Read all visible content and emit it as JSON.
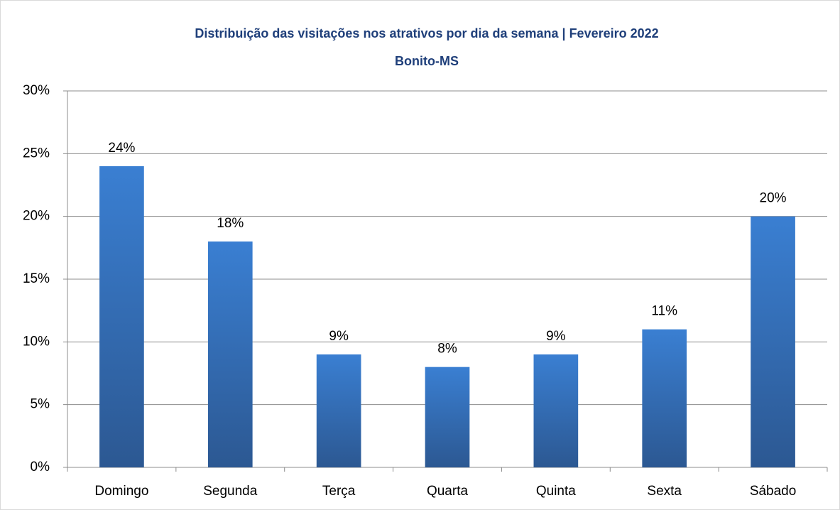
{
  "chart_data": {
    "type": "bar",
    "title": "Distribuição das visitações nos atrativos por dia da semana | Fevereiro 2022",
    "subtitle": "Bonito-MS",
    "categories": [
      "Domingo",
      "Segunda",
      "Terça",
      "Quarta",
      "Quinta",
      "Sexta",
      "Sábado"
    ],
    "values": [
      24,
      18,
      9,
      8,
      9,
      11,
      20
    ],
    "value_labels": [
      "24%",
      "18%",
      "9%",
      "8%",
      "9%",
      "11%",
      "20%"
    ],
    "color": "#3a7ccc",
    "ylim": [
      0,
      30
    ],
    "yticks": [
      {
        "value": 0,
        "label": "0%"
      },
      {
        "value": 5,
        "label": "5%"
      },
      {
        "value": 10,
        "label": "10%"
      },
      {
        "value": 15,
        "label": "15%"
      },
      {
        "value": 20,
        "label": "20%"
      },
      {
        "value": 25,
        "label": "25%"
      },
      {
        "value": 30,
        "label": "30%"
      }
    ],
    "grid": true
  }
}
